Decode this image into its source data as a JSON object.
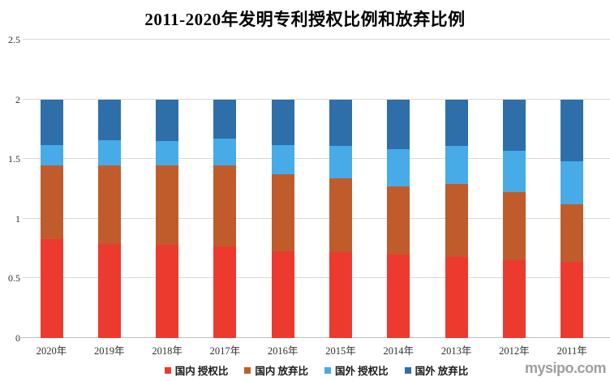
{
  "page": {
    "title": "2011-2020年发明专利授权比例和放弃比例",
    "watermark": "mysipo.com"
  },
  "chart_data": {
    "type": "bar",
    "variant": "stacked-column",
    "title": "2011-2020年发明专利授权比例和放弃比例",
    "categories": [
      "2020年",
      "2019年",
      "2018年",
      "2017年",
      "2016年",
      "2015年",
      "2014年",
      "2013年",
      "2012年",
      "2011年"
    ],
    "series": [
      {
        "key": "domestic-grant-ratio",
        "name": "国内 授权比",
        "color": "#ec3a2f",
        "values": [
          0.83,
          0.79,
          0.78,
          0.77,
          0.73,
          0.72,
          0.7,
          0.68,
          0.65,
          0.64
        ]
      },
      {
        "key": "domestic-abandon-ratio",
        "name": "国内 放弃比",
        "color": "#c05c2b",
        "values": [
          0.62,
          0.66,
          0.67,
          0.68,
          0.64,
          0.62,
          0.57,
          0.61,
          0.57,
          0.48
        ]
      },
      {
        "key": "foreign-grant-ratio",
        "name": "国外 授权比",
        "color": "#47abe8",
        "values": [
          0.17,
          0.21,
          0.2,
          0.22,
          0.25,
          0.27,
          0.31,
          0.32,
          0.35,
          0.36
        ]
      },
      {
        "key": "foreign-abandon-ratio",
        "name": "国外 放弃比",
        "color": "#2e6fa9",
        "values": [
          0.38,
          0.34,
          0.35,
          0.33,
          0.38,
          0.39,
          0.42,
          0.39,
          0.43,
          0.52
        ]
      }
    ],
    "stack_total": 2.0,
    "y_axis": {
      "min": 0,
      "max": 2.5,
      "tick_values": [
        0,
        0.5,
        1,
        1.5,
        2,
        2.5
      ],
      "tick_labels": [
        "0",
        "0.5",
        "1",
        "1.5",
        "2",
        "2.5"
      ]
    },
    "grid": true,
    "legend_position": "bottom",
    "colors": {
      "gridline": "#d9d9d9",
      "axis": "#bfbfbf",
      "label_text": "#303030",
      "watermark": "#9e9e9e"
    }
  }
}
